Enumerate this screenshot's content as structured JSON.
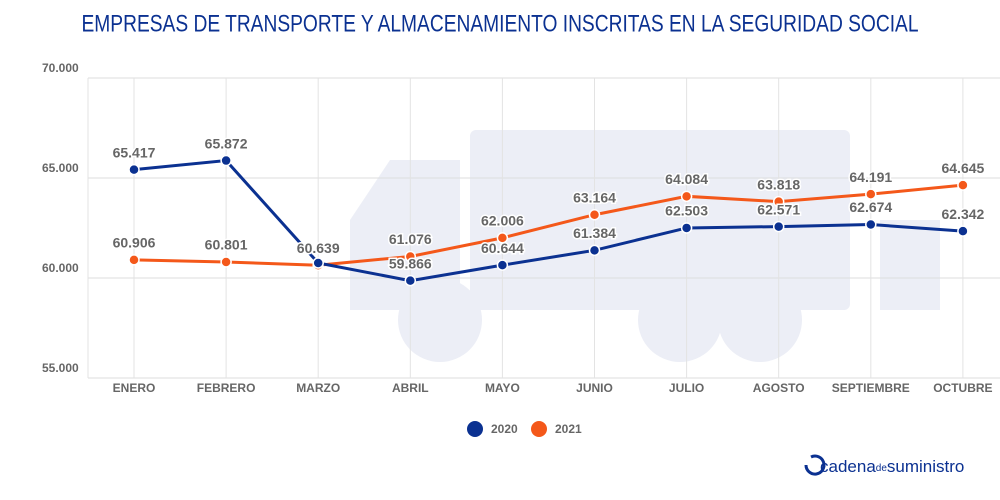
{
  "chart_data": {
    "type": "line",
    "title": "EMPRESAS DE TRANSPORTE Y ALMACENAMIENTO INSCRITAS EN LA SEGURIDAD SOCIAL",
    "categories": [
      "ENERO",
      "FEBRERO",
      "MARZO",
      "ABRIL",
      "MAYO",
      "JUNIO",
      "JULIO",
      "AGOSTO",
      "SEPTIEMBRE",
      "OCTUBRE"
    ],
    "series": [
      {
        "name": "2020",
        "color": "#0b3191",
        "values": [
          65417,
          65872,
          60750,
          59866,
          60644,
          61384,
          62503,
          62571,
          62674,
          62342
        ],
        "value_labels": [
          "65.417",
          "65.872",
          null,
          "59.866",
          "60.644",
          "61.384",
          "62.503",
          "62.571",
          "62.674",
          "62.342"
        ]
      },
      {
        "name": "2021",
        "color": "#f4581a",
        "values": [
          60906,
          60801,
          60639,
          61076,
          62006,
          63164,
          64084,
          63818,
          64191,
          64645
        ],
        "value_labels": [
          "60.906",
          "60.801",
          "60.639",
          "61.076",
          "62.006",
          "63.164",
          "64.084",
          "63.818",
          "64.191",
          "64.645"
        ]
      }
    ],
    "ylim": [
      55000,
      70000
    ],
    "yticks": [
      {
        "value": 55000,
        "label": "55.000"
      },
      {
        "value": 60000,
        "label": "60.000"
      },
      {
        "value": 65000,
        "label": "65.000"
      },
      {
        "value": 70000,
        "label": "70.000"
      }
    ],
    "grid": true,
    "legend": "bottom"
  },
  "brand": {
    "name": "cadena",
    "middle": "de",
    "end": "suministro"
  }
}
